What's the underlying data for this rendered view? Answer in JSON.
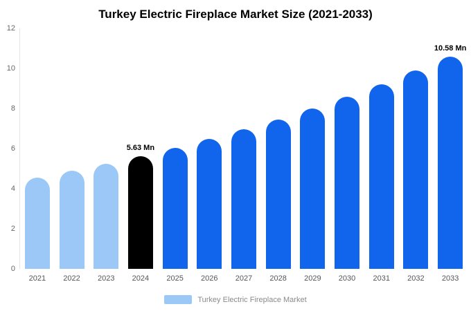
{
  "chart_data": {
    "type": "bar",
    "title": "Turkey Electric Fireplace Market Size (2021-2033)",
    "xlabel": "",
    "ylabel": "",
    "categories": [
      "2021",
      "2022",
      "2023",
      "2024",
      "2025",
      "2026",
      "2027",
      "2028",
      "2029",
      "2030",
      "2031",
      "2032",
      "2033"
    ],
    "values": [
      4.56,
      4.89,
      5.25,
      5.63,
      6.04,
      6.48,
      6.95,
      7.46,
      8.0,
      8.59,
      9.21,
      9.88,
      10.58
    ],
    "bar_colors": [
      "#9CC8F7",
      "#9CC8F7",
      "#9CC8F7",
      "#000000",
      "#1065EC",
      "#1065EC",
      "#1065EC",
      "#1065EC",
      "#1065EC",
      "#1065EC",
      "#1065EC",
      "#1065EC",
      "#1065EC"
    ],
    "bar_labels": [
      "",
      "",
      "",
      "5.63 Mn",
      "",
      "",
      "",
      "",
      "",
      "",
      "",
      "",
      "10.58 Mn"
    ],
    "ylim": [
      0,
      12
    ],
    "yticks": [
      0,
      2,
      4,
      6,
      8,
      10,
      12
    ],
    "grid": false,
    "legend": {
      "label": "Turkey Electric Fireplace Market",
      "position": "bottom",
      "swatch_color": "#9CC8F7"
    },
    "colors": {
      "series_light": "#9CC8F7",
      "series_highlight": "#000000",
      "series_forecast": "#1065EC",
      "axis_text": "#666666",
      "legend_text": "#8A8A8A"
    }
  }
}
